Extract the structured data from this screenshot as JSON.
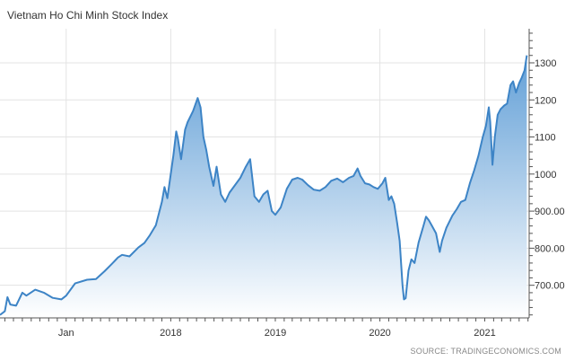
{
  "chart_data": {
    "type": "area",
    "title": "Vietnam Ho Chi Minh Stock Index",
    "source": "SOURCE: TRADINGECONOMICS.COM",
    "ylim": [
      612,
      1392
    ],
    "y_ticks": [
      700,
      800,
      900,
      1000,
      1100,
      1200,
      1300
    ],
    "y_tick_labels": [
      "700.00",
      "800.00",
      "900.00",
      "1000",
      "1100",
      "1200",
      "1300"
    ],
    "x_range": [
      "2016-05-15",
      "2021-06-05"
    ],
    "x_ticks": [
      {
        "date": "2017-01-01",
        "label": "Jan"
      },
      {
        "date": "2018-01-01",
        "label": "2018"
      },
      {
        "date": "2019-01-01",
        "label": "2019"
      },
      {
        "date": "2020-01-01",
        "label": "2020"
      },
      {
        "date": "2021-01-01",
        "label": "2021"
      }
    ],
    "grid": true,
    "line_color": "#3d84c6",
    "fill_top_color": "#5b9bd5",
    "fill_bottom_color": "#ffffff",
    "series": [
      {
        "points": [
          [
            "2016-05-15",
            620
          ],
          [
            "2016-06-01",
            630
          ],
          [
            "2016-06-10",
            668
          ],
          [
            "2016-06-20",
            648
          ],
          [
            "2016-07-10",
            645
          ],
          [
            "2016-08-01",
            680
          ],
          [
            "2016-08-15",
            672
          ],
          [
            "2016-09-15",
            688
          ],
          [
            "2016-10-15",
            680
          ],
          [
            "2016-11-15",
            666
          ],
          [
            "2016-12-15",
            662
          ],
          [
            "2017-01-01",
            672
          ],
          [
            "2017-02-01",
            705
          ],
          [
            "2017-03-15",
            715
          ],
          [
            "2017-04-15",
            717
          ],
          [
            "2017-05-15",
            738
          ],
          [
            "2017-06-10",
            758
          ],
          [
            "2017-07-01",
            775
          ],
          [
            "2017-07-15",
            782
          ],
          [
            "2017-08-10",
            778
          ],
          [
            "2017-09-10",
            802
          ],
          [
            "2017-10-01",
            814
          ],
          [
            "2017-10-20",
            835
          ],
          [
            "2017-11-10",
            862
          ],
          [
            "2017-12-01",
            925
          ],
          [
            "2017-12-10",
            965
          ],
          [
            "2017-12-20",
            935
          ],
          [
            "2018-01-01",
            1000
          ],
          [
            "2018-01-10",
            1050
          ],
          [
            "2018-01-20",
            1115
          ],
          [
            "2018-01-26",
            1095
          ],
          [
            "2018-02-06",
            1040
          ],
          [
            "2018-02-20",
            1120
          ],
          [
            "2018-03-01",
            1140
          ],
          [
            "2018-03-20",
            1170
          ],
          [
            "2018-04-05",
            1205
          ],
          [
            "2018-04-15",
            1180
          ],
          [
            "2018-04-25",
            1100
          ],
          [
            "2018-05-05",
            1065
          ],
          [
            "2018-05-15",
            1020
          ],
          [
            "2018-05-30",
            968
          ],
          [
            "2018-06-10",
            1020
          ],
          [
            "2018-06-25",
            945
          ],
          [
            "2018-07-10",
            925
          ],
          [
            "2018-07-25",
            950
          ],
          [
            "2018-08-15",
            972
          ],
          [
            "2018-09-01",
            990
          ],
          [
            "2018-09-20",
            1020
          ],
          [
            "2018-10-05",
            1040
          ],
          [
            "2018-10-20",
            940
          ],
          [
            "2018-11-05",
            925
          ],
          [
            "2018-11-20",
            945
          ],
          [
            "2018-12-05",
            955
          ],
          [
            "2018-12-20",
            900
          ],
          [
            "2019-01-01",
            890
          ],
          [
            "2019-01-20",
            910
          ],
          [
            "2019-02-10",
            960
          ],
          [
            "2019-03-01",
            985
          ],
          [
            "2019-03-20",
            990
          ],
          [
            "2019-04-05",
            985
          ],
          [
            "2019-04-25",
            970
          ],
          [
            "2019-05-15",
            958
          ],
          [
            "2019-06-05",
            955
          ],
          [
            "2019-06-25",
            965
          ],
          [
            "2019-07-15",
            982
          ],
          [
            "2019-08-05",
            988
          ],
          [
            "2019-08-25",
            978
          ],
          [
            "2019-09-15",
            990
          ],
          [
            "2019-10-01",
            995
          ],
          [
            "2019-10-15",
            1015
          ],
          [
            "2019-10-25",
            995
          ],
          [
            "2019-11-10",
            975
          ],
          [
            "2019-11-25",
            972
          ],
          [
            "2019-12-10",
            965
          ],
          [
            "2019-12-25",
            960
          ],
          [
            "2020-01-10",
            975
          ],
          [
            "2020-01-20",
            990
          ],
          [
            "2020-02-01",
            930
          ],
          [
            "2020-02-10",
            940
          ],
          [
            "2020-02-20",
            920
          ],
          [
            "2020-03-01",
            870
          ],
          [
            "2020-03-10",
            820
          ],
          [
            "2020-03-20",
            700
          ],
          [
            "2020-03-25",
            662
          ],
          [
            "2020-03-31",
            665
          ],
          [
            "2020-04-10",
            740
          ],
          [
            "2020-04-20",
            770
          ],
          [
            "2020-05-01",
            760
          ],
          [
            "2020-05-15",
            815
          ],
          [
            "2020-06-01",
            860
          ],
          [
            "2020-06-10",
            885
          ],
          [
            "2020-06-20",
            875
          ],
          [
            "2020-07-01",
            860
          ],
          [
            "2020-07-15",
            840
          ],
          [
            "2020-07-28",
            790
          ],
          [
            "2020-08-05",
            820
          ],
          [
            "2020-08-20",
            855
          ],
          [
            "2020-09-10",
            888
          ],
          [
            "2020-09-25",
            905
          ],
          [
            "2020-10-10",
            925
          ],
          [
            "2020-10-25",
            930
          ],
          [
            "2020-11-10",
            975
          ],
          [
            "2020-11-25",
            1010
          ],
          [
            "2020-12-10",
            1050
          ],
          [
            "2020-12-25",
            1100
          ],
          [
            "2021-01-05",
            1130
          ],
          [
            "2021-01-15",
            1180
          ],
          [
            "2021-01-20",
            1140
          ],
          [
            "2021-01-28",
            1025
          ],
          [
            "2021-02-05",
            1100
          ],
          [
            "2021-02-15",
            1160
          ],
          [
            "2021-02-25",
            1175
          ],
          [
            "2021-03-10",
            1185
          ],
          [
            "2021-03-20",
            1190
          ],
          [
            "2021-04-01",
            1240
          ],
          [
            "2021-04-10",
            1250
          ],
          [
            "2021-04-20",
            1220
          ],
          [
            "2021-05-01",
            1245
          ],
          [
            "2021-05-10",
            1260
          ],
          [
            "2021-05-20",
            1280
          ],
          [
            "2021-05-28",
            1320
          ]
        ]
      }
    ]
  }
}
